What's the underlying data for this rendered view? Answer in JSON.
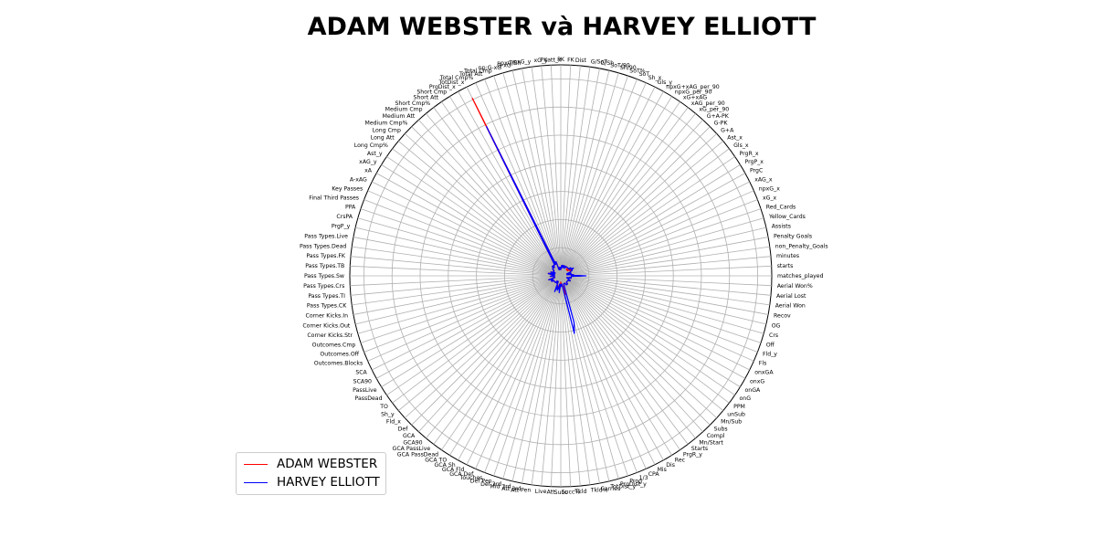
{
  "chart_data": {
    "type": "radar",
    "title": "ADAM WEBSTER và HARVEY ELLIOTT",
    "legend_position": "lower-left",
    "grid": true,
    "rlim": [
      0,
      1
    ],
    "categories": [
      "matches_played",
      "starts",
      "minutes",
      "non_Penalty_Goals",
      "Penalty Goals",
      "Assists",
      "Yellow_Cards",
      "Red_Cards",
      "xG_x",
      "npxG_x",
      "xAG_x",
      "PrgC",
      "PrgP_x",
      "PrgR_x",
      "Gls_x",
      "Ast_x",
      "G+A",
      "G-PK",
      "G+A-PK",
      "xG_per_90",
      "xAG_per_90",
      "xG+xAG",
      "npxG_per_90",
      "npxG+xAG_per_90",
      "Gls_y",
      "Sh_x",
      "SoT",
      "SoT%",
      "Sh/90",
      "SoT/90",
      "G/Sh",
      "G/SoT",
      "Dist",
      "FK",
      "PK",
      "PKatt_x",
      "xG_y",
      "npxG_y",
      "npxG/Sh",
      "G-xG",
      "np:G-xG",
      "Total Cmp",
      "Total Att",
      "Total Cmp%",
      "TotDist_x",
      "PrgDist_x",
      "Short Cmp",
      "Short Att",
      "Short Cmp%",
      "Medium Cmp",
      "Medium Att",
      "Medium Cmp%",
      "Long Cmp",
      "Long Att",
      "Long Cmp%",
      "Ast_y",
      "xAG_y",
      "xA",
      "A-xAG",
      "Key Passes",
      "Final Third Passes",
      "PPA",
      "CrsPA",
      "PrgP_y",
      "Pass Types.Live",
      "Pass Types.Dead",
      "Pass Types.FK",
      "Pass Types.TB",
      "Pass Types.Sw",
      "Pass Types.Crs",
      "Pass Types.TI",
      "Pass Types.CK",
      "Corner Kicks.In",
      "Corner Kicks.Out",
      "Corner Kicks.Str",
      "Outcomes.Cmp",
      "Outcomes.Off",
      "Outcomes.Blocks",
      "SCA",
      "SCA90",
      "PassLive",
      "PassDead",
      "TO",
      "Sh_y",
      "Fld_x",
      "Def",
      "GCA",
      "GCA90",
      "GCA PassLive",
      "GCA PassDead",
      "GCA TO",
      "GCA Sh",
      "GCA Fld",
      "GCA Def",
      "Touches",
      "Def Pen",
      "Def 3rd",
      "Mid 3rd",
      "Att 3rd",
      "Att Pen",
      "Live",
      "Att",
      "Succ",
      "Succ%",
      "Tkld",
      "Tkld%",
      "Carries",
      "TotDist_y",
      "PrgDist_y",
      "Prog",
      "1/3",
      "CPA",
      "Mis",
      "Dis",
      "Rec",
      "PrgR_y",
      "Starts",
      "Mn/Start",
      "Compl",
      "Subs",
      "Mn/Sub",
      "unSub",
      "PPM",
      "onG",
      "onGA",
      "onxG",
      "onxGA",
      "Fls",
      "Fld_y",
      "Off",
      "Crs",
      "OG",
      "Recov",
      "Aerial Won",
      "Aerial Lost",
      "Aerial Won%"
    ],
    "series": [
      {
        "name": "ADAM WEBSTER",
        "color": "#ff0000",
        "values": [
          0.09,
          0.05,
          0.06,
          0.04,
          0.03,
          0.05,
          0.04,
          0.03,
          0.05,
          0.05,
          0.06,
          0.05,
          0.06,
          0.05,
          0.04,
          0.05,
          0.04,
          0.04,
          0.04,
          0.05,
          0.05,
          0.05,
          0.05,
          0.05,
          0.04,
          0.05,
          0.05,
          0.05,
          0.04,
          0.05,
          0.05,
          0.04,
          0.05,
          0.04,
          0.03,
          0.03,
          0.04,
          0.04,
          0.04,
          0.03,
          0.03,
          0.07,
          0.07,
          0.06,
          0.94,
          0.06,
          0.06,
          0.06,
          0.05,
          0.06,
          0.06,
          0.05,
          0.05,
          0.05,
          0.04,
          0.04,
          0.04,
          0.04,
          0.03,
          0.04,
          0.05,
          0.04,
          0.03,
          0.05,
          0.06,
          0.04,
          0.03,
          0.04,
          0.04,
          0.05,
          0.03,
          0.03,
          0.03,
          0.03,
          0.03,
          0.06,
          0.04,
          0.04,
          0.05,
          0.05,
          0.05,
          0.04,
          0.04,
          0.04,
          0.04,
          0.04,
          0.04,
          0.04,
          0.04,
          0.03,
          0.03,
          0.03,
          0.04,
          0.03,
          0.06,
          0.05,
          0.05,
          0.06,
          0.05,
          0.04,
          0.06,
          0.04,
          0.03,
          0.05,
          0.04,
          0.04,
          0.05,
          0.09,
          0.09,
          0.05,
          0.04,
          0.04,
          0.04,
          0.04,
          0.05,
          0.05,
          0.05,
          0.05,
          0.04,
          0.04,
          0.04,
          0.04,
          0.04,
          0.04,
          0.04,
          0.05,
          0.05,
          0.04,
          0.04,
          0.03,
          0.03,
          0.05,
          0.04,
          0.05,
          0.05,
          0.05
        ]
      },
      {
        "name": "HARVEY ELLIOTT",
        "color": "#0000ff",
        "values": [
          0.12,
          0.05,
          0.06,
          0.04,
          0.03,
          0.05,
          0.04,
          0.03,
          0.05,
          0.05,
          0.06,
          0.06,
          0.07,
          0.06,
          0.05,
          0.06,
          0.05,
          0.05,
          0.05,
          0.05,
          0.05,
          0.05,
          0.05,
          0.05,
          0.04,
          0.05,
          0.05,
          0.05,
          0.04,
          0.05,
          0.05,
          0.04,
          0.05,
          0.04,
          0.03,
          0.03,
          0.04,
          0.04,
          0.04,
          0.03,
          0.03,
          0.07,
          0.07,
          0.06,
          0.79,
          0.06,
          0.06,
          0.06,
          0.05,
          0.06,
          0.06,
          0.05,
          0.05,
          0.05,
          0.04,
          0.04,
          0.04,
          0.04,
          0.03,
          0.04,
          0.05,
          0.04,
          0.03,
          0.05,
          0.06,
          0.04,
          0.03,
          0.04,
          0.04,
          0.05,
          0.03,
          0.03,
          0.03,
          0.03,
          0.03,
          0.06,
          0.04,
          0.04,
          0.05,
          0.05,
          0.05,
          0.04,
          0.04,
          0.04,
          0.04,
          0.04,
          0.04,
          0.04,
          0.04,
          0.03,
          0.03,
          0.03,
          0.04,
          0.03,
          0.08,
          0.05,
          0.06,
          0.07,
          0.06,
          0.04,
          0.08,
          0.05,
          0.04,
          0.05,
          0.04,
          0.04,
          0.07,
          0.28,
          0.23,
          0.05,
          0.04,
          0.04,
          0.04,
          0.04,
          0.05,
          0.05,
          0.05,
          0.05,
          0.04,
          0.04,
          0.04,
          0.04,
          0.04,
          0.04,
          0.04,
          0.05,
          0.05,
          0.04,
          0.04,
          0.03,
          0.03,
          0.05,
          0.04,
          0.05,
          0.05,
          0.05
        ]
      }
    ]
  }
}
